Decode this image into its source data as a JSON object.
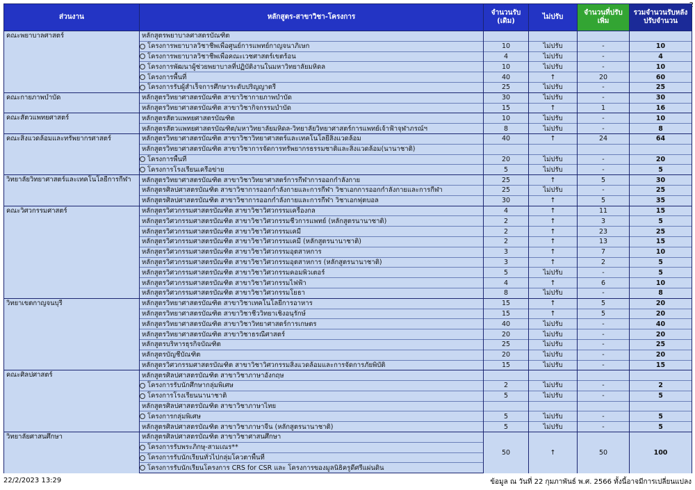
{
  "page_number": "2",
  "header": {
    "faculty": "ส่วนงาน",
    "program": "หลักสูตร-สาขาวิชา-โครงการ",
    "original": "จำนวนรับ (เดิม)",
    "adjust": "ไม่ปรับ",
    "added": "จำนวนที่ปรับเพิ่ม",
    "total": "รวมจำนวนรับหลังปรับจำนวน"
  },
  "groups": [
    {
      "faculty": "คณะพยาบาลศาสตร์",
      "programs": [
        {
          "name": "หลักสูตรพยาบาลศาสตรบัณฑิต",
          "projects": [
            {
              "name": "โครงการพยาบาลวิชาชีพเพื่อศูนย์การแพทย์กาญจนาภิเษก",
              "values": {
                "original": 10,
                "adjust": "ไม่ปรับ",
                "added": "-",
                "total": 10
              }
            },
            {
              "name": "โครงการพยาบาลวิชาชีพเพื่อคณะเวชศาสตร์เขตร้อน",
              "values": {
                "original": 4,
                "adjust": "ไม่ปรับ",
                "added": "-",
                "total": 4
              }
            },
            {
              "name": "โครงการพัฒนาผู้ช่วยพยาบาลที่ปฏิบัติงานในมหาวิทยาลัยมหิดล",
              "values": {
                "original": 10,
                "adjust": "ไม่ปรับ",
                "added": "-",
                "total": 10
              }
            },
            {
              "name": "โครงการพื้นที่",
              "values": {
                "original": 40,
                "adjust": "↑",
                "added": 20,
                "total": 60
              }
            },
            {
              "name": "โครงการรับผู้สำเร็จการศึกษาระดับปริญญาตรี",
              "values": {
                "original": 25,
                "adjust": "ไม่ปรับ",
                "added": "-",
                "total": 25
              }
            }
          ]
        }
      ]
    },
    {
      "faculty": "คณะกายภาพบำบัด",
      "programs": [
        {
          "name": "หลักสูตรวิทยาศาสตรบัณฑิต สาขาวิชากายภาพบำบัด",
          "values": {
            "original": 30,
            "adjust": "ไม่ปรับ",
            "added": "-",
            "total": 30
          }
        },
        {
          "name": "หลักสูตรวิทยาศาสตรบัณฑิต สาขาวิชากิจกรรมบำบัด",
          "values": {
            "original": 15,
            "adjust": "↑",
            "added": 1,
            "total": 16
          }
        }
      ]
    },
    {
      "faculty": "คณะสัตวแพทยศาสตร์",
      "programs": [
        {
          "name": "หลักสูตรสัตวแพทยศาสตรบัณฑิต",
          "values": {
            "original": 10,
            "adjust": "ไม่ปรับ",
            "added": "-",
            "total": 10
          }
        },
        {
          "name": "หลักสูตรสัตวแพทยศาสตรบัณฑิต/มหาวิทยาลัยมหิดล-วิทยาลัยวิทยาศาสตร์การแพทย์เจ้าฟ้าจุฬาภรณ์ฯ",
          "values": {
            "original": 8,
            "adjust": "ไม่ปรับ",
            "added": "-",
            "total": 8
          }
        }
      ]
    },
    {
      "faculty": "คณะสิ่งแวดล้อมและทรัพยากรศาสตร์",
      "programs": [
        {
          "name": "หลักสูตรวิทยาศาสตรบัณฑิต สาขาวิชาวิทยาศาสตร์และเทคโนโลยีสิ่งแวดล้อม",
          "values": {
            "original": 40,
            "adjust": "↑",
            "added": 24,
            "total": 64
          }
        },
        {
          "name": "หลักสูตรวิทยาศาสตรบัณฑิต สาขาวิชาการจัดการทรัพยากรธรรมชาติและสิ่งแวดล้อม(นานาชาติ)",
          "projects": [
            {
              "name": "โครงการพื้นที่",
              "values": {
                "original": 20,
                "adjust": "ไม่ปรับ",
                "added": "-",
                "total": 20
              }
            },
            {
              "name": "โครงการโรงเรียนเครือข่าย",
              "values": {
                "original": 5,
                "adjust": "ไม่ปรับ",
                "added": "-",
                "total": 5
              }
            }
          ]
        }
      ]
    },
    {
      "faculty": "วิทยาลัยวิทยาศาสตร์และเทคโนโลยีการกีฬา",
      "programs": [
        {
          "name": "หลักสูตรวิทยาศาสตรบัณฑิต สาขาวิชาวิทยาศาสตร์การกีฬาการออกกำลังกาย",
          "values": {
            "original": 25,
            "adjust": "↑",
            "added": 5,
            "total": 30
          }
        },
        {
          "name": "หลักสูตรศิลปศาสตรบัณฑิต สาขาวิชาการออกกำลังกายและการกีฬา วิชาเอกการออกกำลังกายและการกีฬา",
          "values": {
            "original": 25,
            "adjust": "ไม่ปรับ",
            "added": "-",
            "total": 25
          }
        },
        {
          "name": "หลักสูตรศิลปศาสตรบัณฑิต สาขาวิชาการออกกำลังกายและการกีฬา วิชาเอกฟุตบอล",
          "values": {
            "original": 30,
            "adjust": "↑",
            "added": 5,
            "total": 35
          }
        }
      ]
    },
    {
      "faculty": "คณะวิศวกรรมศาสตร์",
      "programs": [
        {
          "name": "หลักสูตรวิศวกรรมศาสตรบัณฑิต สาขาวิชาวิศวกรรมเครื่องกล",
          "values": {
            "original": 4,
            "adjust": "↑",
            "added": 11,
            "total": 15
          }
        },
        {
          "name": "หลักสูตรวิศวกรรมศาสตรบัณฑิต สาขาวิชาวิศวกรรมชีวการแพทย์ (หลักสูตรนานาชาติ)",
          "values": {
            "original": 2,
            "adjust": "↑",
            "added": 3,
            "total": 5
          }
        },
        {
          "name": "หลักสูตรวิศวกรรมศาสตรบัณฑิต สาขาวิชาวิศวกรรมเคมี",
          "values": {
            "original": 2,
            "adjust": "↑",
            "added": 23,
            "total": 25
          }
        },
        {
          "name": "หลักสูตรวิศวกรรมศาสตรบัณฑิต สาขาวิชาวิศวกรรมเคมี (หลักสูตรนานาชาติ)",
          "values": {
            "original": 2,
            "adjust": "↑",
            "added": 13,
            "total": 15
          }
        },
        {
          "name": "หลักสูตรวิศวกรรมศาสตรบัณฑิต สาขาวิชาวิศวกรรมอุตสาหการ",
          "values": {
            "original": 3,
            "adjust": "↑",
            "added": 7,
            "total": 10
          }
        },
        {
          "name": "หลักสูตรวิศวกรรมศาสตรบัณฑิต สาขาวิชาวิศวกรรมอุตสาหการ (หลักสูตรนานาชาติ)",
          "values": {
            "original": 3,
            "adjust": "↑",
            "added": 2,
            "total": 5
          }
        },
        {
          "name": "หลักสูตรวิศวกรรมศาสตรบัณฑิต สาขาวิชาวิศวกรรมคอมพิวเตอร์",
          "values": {
            "original": 5,
            "adjust": "ไม่ปรับ",
            "added": "-",
            "total": 5
          }
        },
        {
          "name": "หลักสูตรวิศวกรรมศาสตรบัณฑิต สาขาวิชาวิศวกรรมไฟฟ้า",
          "values": {
            "original": 4,
            "adjust": "↑",
            "added": 6,
            "total": 10
          }
        },
        {
          "name": "หลักสูตรวิศวกรรมศาสตรบัณฑิต สาขาวิชาวิศวกรรมโยธา",
          "values": {
            "original": 8,
            "adjust": "ไม่ปรับ",
            "added": "-",
            "total": 8
          }
        }
      ]
    },
    {
      "faculty": "วิทยาเขตกาญจนบุรี",
      "programs": [
        {
          "name": "หลักสูตรวิทยาศาสตรบัณฑิต สาขาวิชาเทคโนโลยีการอาหาร",
          "values": {
            "original": 15,
            "adjust": "↑",
            "added": 5,
            "total": 20
          }
        },
        {
          "name": "หลักสูตรวิทยาศาสตรบัณฑิต สาขาวิชาชีววิทยาเชิงอนุรักษ์",
          "values": {
            "original": 15,
            "adjust": "↑",
            "added": 5,
            "total": 20
          }
        },
        {
          "name": "หลักสูตรวิทยาศาสตรบัณฑิต สาขาวิชาวิทยาศาสตร์การเกษตร",
          "values": {
            "original": 40,
            "adjust": "ไม่ปรับ",
            "added": "-",
            "total": 40
          }
        },
        {
          "name": "หลักสูตรวิทยาศาสตรบัณฑิต สาขาวิชาธรณีศาสตร์",
          "values": {
            "original": 20,
            "adjust": "ไม่ปรับ",
            "added": "-",
            "total": 20
          }
        },
        {
          "name": "หลักสูตรบริหารธุรกิจบัณฑิต",
          "values": {
            "original": 25,
            "adjust": "ไม่ปรับ",
            "added": "-",
            "total": 25
          }
        },
        {
          "name": "หลักสูตรบัญชีบัณฑิต",
          "values": {
            "original": 20,
            "adjust": "ไม่ปรับ",
            "added": "-",
            "total": 20
          }
        },
        {
          "name": "หลักสูตรวิศวกรรมศาสตรบัณฑิต สาขาวิชาวิศวกรรมสิ่งแวดล้อมและการจัดการภัยพิบัติ",
          "values": {
            "original": 15,
            "adjust": "ไม่ปรับ",
            "added": "-",
            "total": 15
          }
        }
      ]
    },
    {
      "faculty": "คณะศิลปศาสตร์",
      "programs": [
        {
          "name": "หลักสูตรศิลปศาสตรบัณฑิต สาขาวิชาภาษาอังกฤษ",
          "projects": [
            {
              "name": "โครงการรับนักศึกษากลุ่มพิเศษ",
              "values": {
                "original": 2,
                "adjust": "ไม่ปรับ",
                "added": "-",
                "total": 2
              }
            },
            {
              "name": "โครงการโรงเรียนนานาชาติ",
              "values": {
                "original": 5,
                "adjust": "ไม่ปรับ",
                "added": "-",
                "total": 5
              }
            }
          ]
        },
        {
          "name": "หลักสูตรศิลปศาสตรบัณฑิต สาขาวิชาภาษาไทย",
          "projects": [
            {
              "name": "โครงการกลุ่มพิเศษ",
              "values": {
                "original": 5,
                "adjust": "ไม่ปรับ",
                "added": "-",
                "total": 5
              }
            }
          ]
        },
        {
          "name": "หลักสูตรศิลปศาสตรบัณฑิต สาขาวิชาภาษาจีน (หลักสูตรนานาชาติ)",
          "values": {
            "original": 5,
            "adjust": "ไม่ปรับ",
            "added": "-",
            "total": 5
          }
        }
      ]
    },
    {
      "faculty": "วิทยาลัยศาสนศึกษา",
      "programs": [
        {
          "name": "หลักสูตรศิลปศาสตรบัณฑิต สาขาวิชาศาสนศึกษา",
          "values": {
            "original": 50,
            "adjust": "↑",
            "added": 50,
            "total": 100
          },
          "projects": [
            {
              "name": "โครงการรับพระภิกษุ-สามเณร**"
            },
            {
              "name": "โครงการรับนักเรียนทั่วไปกลุ่มโควตาพื้นที่"
            },
            {
              "name": "โครงการรับนักเรียนโครงการ CRS for CSR และ โครงการของมูลนิธิครูดีศรีแผ่นดิน"
            }
          ]
        }
      ]
    }
  ],
  "footer": {
    "timestamp": "22/2/2023 13:29",
    "note": "ข้อมูล ณ วันที่ 22 กุมภาพันธ์ พ.ศ. 2566 ทั้งนี้อาจมีการเปลี่ยนแปลง"
  }
}
